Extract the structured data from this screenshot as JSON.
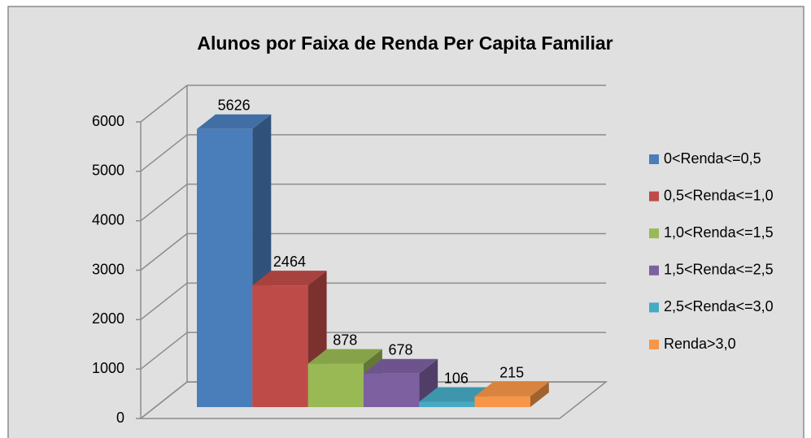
{
  "chart_data": {
    "type": "bar3d",
    "title": "Alunos por Faixa de Renda Per Capita Familiar",
    "series": [
      {
        "name": "0<Renda<=0,5",
        "color": "#4a7ebb",
        "values": [
          5626
        ]
      },
      {
        "name": "0,5<Renda<=1,0",
        "color": "#be4b48",
        "values": [
          2464
        ]
      },
      {
        "name": "1,0<Renda<=1,5",
        "color": "#98b954",
        "values": [
          878
        ]
      },
      {
        "name": "1,5<Renda<=2,5",
        "color": "#7d60a0",
        "values": [
          678
        ]
      },
      {
        "name": "2,5<Renda<=3,0",
        "color": "#46aac5",
        "values": [
          106
        ]
      },
      {
        "name": "Renda>3,0",
        "color": "#f79646",
        "values": [
          215
        ]
      }
    ],
    "ylim": [
      0,
      6000
    ],
    "yticks": [
      0,
      1000,
      2000,
      3000,
      4000,
      5000,
      6000
    ],
    "grid": true,
    "legend": "right"
  }
}
